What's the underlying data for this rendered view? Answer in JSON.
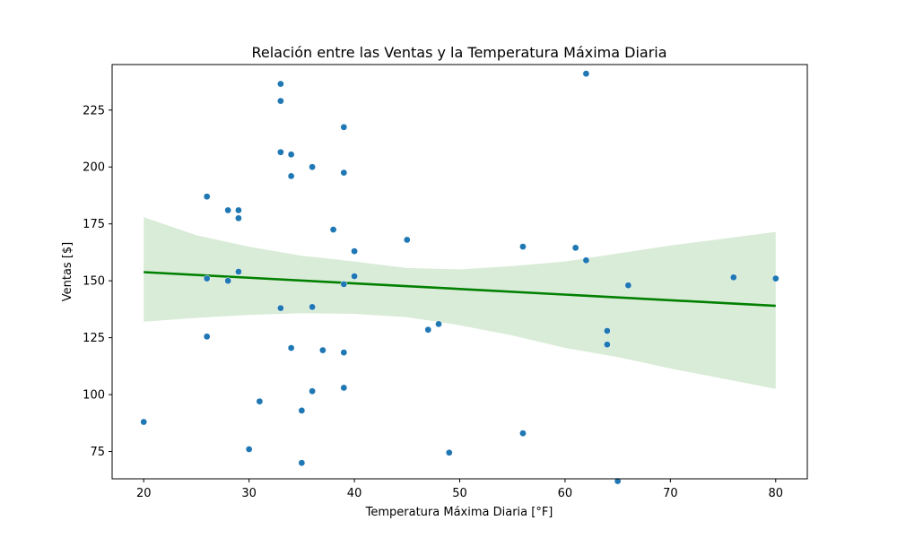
{
  "chart_data": {
    "type": "scatter",
    "title": "Relación entre las Ventas y la Temperatura Máxima Diaria",
    "xlabel": "Temperatura Máxima Diaria [°F]",
    "ylabel": "Ventas [$]",
    "xlim": [
      17,
      83
    ],
    "ylim": [
      63,
      245
    ],
    "xticks": [
      20,
      30,
      40,
      50,
      60,
      70,
      80
    ],
    "yticks": [
      75,
      100,
      125,
      150,
      175,
      200,
      225
    ],
    "grid": false,
    "colors": {
      "points": "#1f77b4",
      "regression_line": "#008000",
      "confidence_band": "#d9ecd7"
    },
    "series": [
      {
        "points": [
          [
            20,
            88
          ],
          [
            26,
            187
          ],
          [
            26,
            151
          ],
          [
            26,
            125.5
          ],
          [
            28,
            181
          ],
          [
            28,
            150
          ],
          [
            29,
            181
          ],
          [
            29,
            177.5
          ],
          [
            29,
            154
          ],
          [
            30,
            76
          ],
          [
            31,
            97
          ],
          [
            33,
            236.5
          ],
          [
            33,
            229
          ],
          [
            33,
            206.5
          ],
          [
            33,
            138
          ],
          [
            34,
            205.5
          ],
          [
            34,
            196
          ],
          [
            34,
            120.5
          ],
          [
            35,
            93
          ],
          [
            35,
            70
          ],
          [
            36,
            200
          ],
          [
            36,
            138.5
          ],
          [
            36,
            101.5
          ],
          [
            37,
            119.5
          ],
          [
            38,
            172.5
          ],
          [
            39,
            217.5
          ],
          [
            39,
            197.5
          ],
          [
            39,
            148.5
          ],
          [
            39,
            118.5
          ],
          [
            39,
            103
          ],
          [
            40,
            163
          ],
          [
            40,
            152
          ],
          [
            45,
            168
          ],
          [
            47,
            128.5
          ],
          [
            48,
            131
          ],
          [
            49,
            74.5
          ],
          [
            56,
            165
          ],
          [
            56,
            83
          ],
          [
            61,
            164.5
          ],
          [
            62,
            241
          ],
          [
            62,
            159
          ],
          [
            64,
            128
          ],
          [
            64,
            122
          ],
          [
            65,
            62
          ],
          [
            66,
            148
          ],
          [
            76,
            151.5
          ],
          [
            80,
            151
          ]
        ]
      }
    ],
    "regression": {
      "x": [
        20,
        80
      ],
      "y": [
        153.8,
        139
      ],
      "band": {
        "x": [
          20,
          25,
          30,
          35,
          40,
          45,
          50,
          55,
          60,
          65,
          70,
          75,
          80
        ],
        "upper": [
          178,
          170,
          165,
          161,
          158.5,
          155.6,
          155,
          156.5,
          158.5,
          162,
          165.5,
          168.5,
          171.5
        ],
        "lower": [
          132,
          133.7,
          135,
          135.8,
          135.5,
          134,
          130.5,
          126,
          120.5,
          116.5,
          111.5,
          107,
          102.5
        ]
      }
    }
  }
}
